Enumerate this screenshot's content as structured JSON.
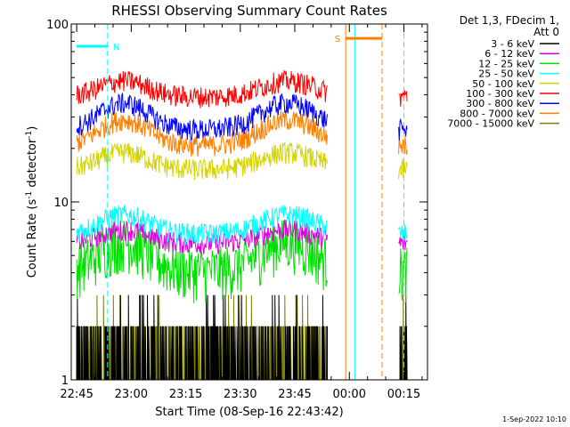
{
  "chart_data": {
    "type": "line",
    "title": "RHESSI Observing Summary Count Rates",
    "xlabel": "Start Time (08-Sep-16 22:43:42)",
    "ylabel_main": "Count Rate (s",
    "ylabel_sup1": "-1",
    "ylabel_mid": " detector",
    "ylabel_sup2": "-1",
    "ylabel_end": ")",
    "yscale": "log",
    "ylim": [
      1,
      100
    ],
    "yticks": [
      {
        "value": 1,
        "label": "1"
      },
      {
        "value": 10,
        "label": "10"
      },
      {
        "value": 100,
        "label": "100"
      }
    ],
    "xlim_minutes": [
      -1.5,
      96.5
    ],
    "xticks": [
      {
        "t": 0,
        "label": "22:45"
      },
      {
        "t": 15,
        "label": "23:00"
      },
      {
        "t": 30,
        "label": "23:15"
      },
      {
        "t": 45,
        "label": "23:30"
      },
      {
        "t": 60,
        "label": "23:45"
      },
      {
        "t": 75,
        "label": "00:00"
      },
      {
        "t": 90,
        "label": "00:15"
      }
    ],
    "data_gap_minutes": [
      69.0,
      88.5
    ],
    "legend_header": [
      "Det 1,3, FDecim 1,",
      "Att 0"
    ],
    "series": [
      {
        "name": "3 - 6 keV",
        "color": "#000000",
        "low": 1.0,
        "high": 2.0
      },
      {
        "name": "6 - 12 keV",
        "color": "#e000e0",
        "low": 5.5,
        "high": 7.0
      },
      {
        "name": "12 - 25 keV",
        "color": "#00e000",
        "low": 3.5,
        "high": 6.0
      },
      {
        "name": "25 - 50 keV",
        "color": "#00ffff",
        "low": 6.0,
        "high": 8.5
      },
      {
        "name": "50 - 100 keV",
        "color": "#d4d400",
        "low": 14,
        "high": 19
      },
      {
        "name": "100 - 300 keV",
        "color": "#ff0000",
        "low": 36,
        "high": 48
      },
      {
        "name": "300 - 800 keV",
        "color": "#0000ff",
        "low": 22,
        "high": 36
      },
      {
        "name": "800 - 7000 keV",
        "color": "#ff7f00",
        "low": 18,
        "high": 29
      },
      {
        "name": "7000 - 15000 keV",
        "color": "#808000",
        "low": 1.0,
        "high": 2.0
      }
    ],
    "annotations": [
      {
        "label": "N",
        "color": "#00ffff",
        "t_start": 0,
        "t_end": 8.5,
        "y": 75
      },
      {
        "label": "S",
        "color": "#ff7f00",
        "t_start": 74,
        "t_end": 84,
        "y": 83
      }
    ],
    "vlines": [
      {
        "t": 8.5,
        "color": "#00ffff",
        "style": "dashed"
      },
      {
        "t": 74.0,
        "color": "#ff7f00",
        "style": "solid"
      },
      {
        "t": 76.5,
        "color": "#00ffff",
        "style": "solid"
      },
      {
        "t": 84.0,
        "color": "#ff7f00",
        "style": "dashed"
      },
      {
        "t": 90.0,
        "color": "#00ffff",
        "style": "dashed"
      }
    ],
    "timestamp": "1-Sep-2022 10:10"
  }
}
